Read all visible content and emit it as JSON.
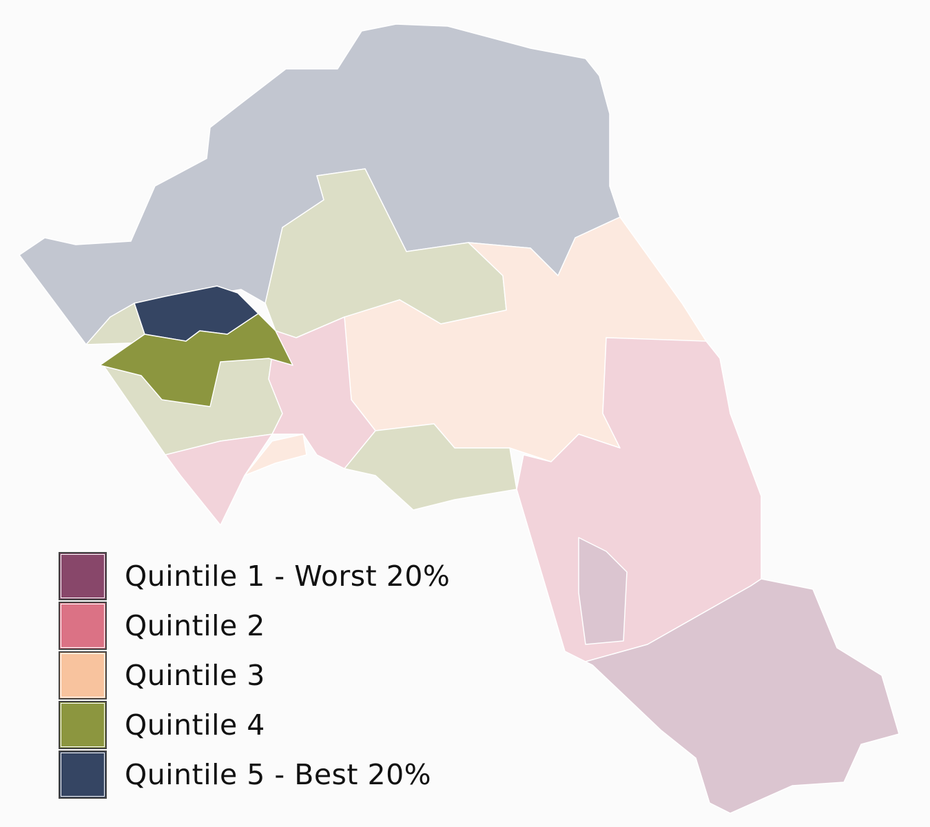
{
  "chart_data": {
    "type": "choropleth",
    "title": "",
    "legend": [
      {
        "label": "Quintile 1 - Worst 20%",
        "color": "#88476a"
      },
      {
        "label": "Quintile 2",
        "color": "#db7285"
      },
      {
        "label": "Quintile 3",
        "color": "#f8c39e"
      },
      {
        "label": "Quintile 4",
        "color": "#8c963f"
      },
      {
        "label": "Quintile 5 - Best 20%",
        "color": "#354563"
      }
    ],
    "legend_placement": "bottom-left",
    "faded_colors": {
      "1": "#dbc5d0",
      "2": "#f2d3da",
      "3": "#fce9df",
      "4": "#dcdec6",
      "5": "#c2c6d0"
    },
    "highlighted_quintiles": [
      4,
      5
    ],
    "background": "#fbfbfb"
  }
}
